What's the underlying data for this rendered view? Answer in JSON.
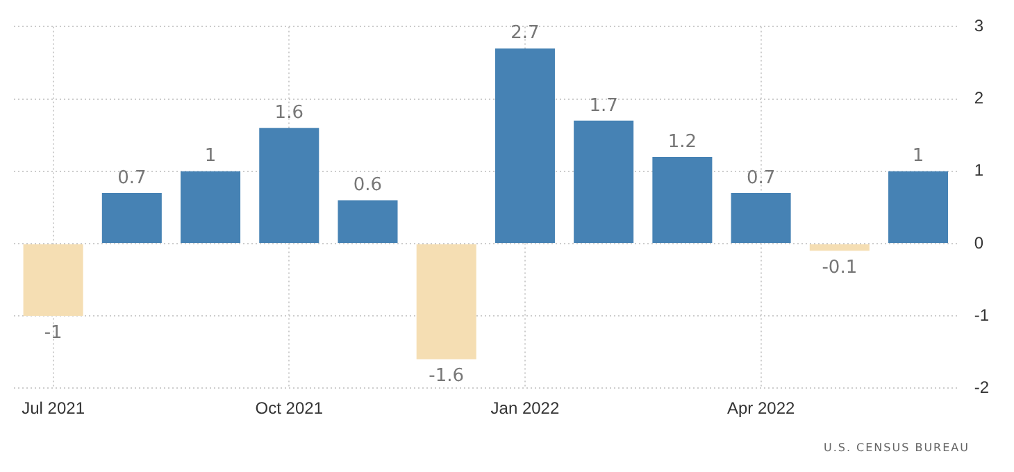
{
  "chart_data": {
    "type": "bar",
    "categories": [
      "Jul 2021",
      null,
      null,
      "Oct 2021",
      null,
      null,
      "Jan 2022",
      null,
      null,
      "Apr 2022",
      null,
      null
    ],
    "values": [
      -1,
      0.7,
      1,
      1.6,
      0.6,
      -1.6,
      2.7,
      1.7,
      1.2,
      0.7,
      -0.1,
      1
    ],
    "colors": [
      "#f5deb3",
      "#4682b4",
      "#4682b4",
      "#4682b4",
      "#4682b4",
      "#f5deb3",
      "#4682b4",
      "#4682b4",
      "#4682b4",
      "#4682b4",
      "#f5deb3",
      "#4682b4"
    ],
    "ylim": [
      -2,
      3
    ],
    "yticks": [
      -2,
      -1,
      0,
      1,
      2,
      3
    ],
    "grid": true,
    "data_labels": true,
    "legend": false,
    "annotations": [
      "U.S. CENSUS BUREAU"
    ]
  }
}
